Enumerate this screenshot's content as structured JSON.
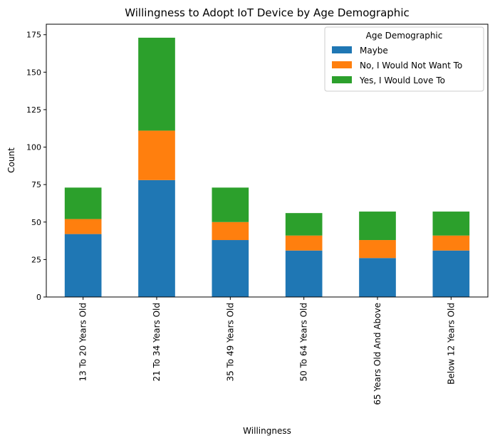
{
  "chart_data": {
    "type": "bar",
    "stacked": true,
    "title": "Willingness to Adopt IoT Device by Age Demographic",
    "xlabel": "Willingness",
    "ylabel": "Count",
    "ylim": [
      0,
      182
    ],
    "yticks": [
      0,
      25,
      50,
      75,
      100,
      125,
      150,
      175
    ],
    "grid": false,
    "legend": {
      "title": "Age Demographic",
      "placement": "top-right"
    },
    "categories": [
      "13 To 20 Years Old",
      "21 To 34 Years Old",
      "35 To 49 Years Old",
      "50 To 64 Years Old",
      "65 Years Old And Above",
      "Below 12 Years Old"
    ],
    "series": [
      {
        "name": "Maybe",
        "color": "#1f77b4",
        "values": [
          42,
          78,
          38,
          31,
          26,
          31
        ]
      },
      {
        "name": "No, I Would Not Want To",
        "color": "#ff7f0e",
        "values": [
          10,
          33,
          12,
          10,
          12,
          10
        ]
      },
      {
        "name": "Yes, I Would Love To",
        "color": "#2ca02c",
        "values": [
          21,
          62,
          23,
          15,
          19,
          16
        ]
      }
    ]
  }
}
